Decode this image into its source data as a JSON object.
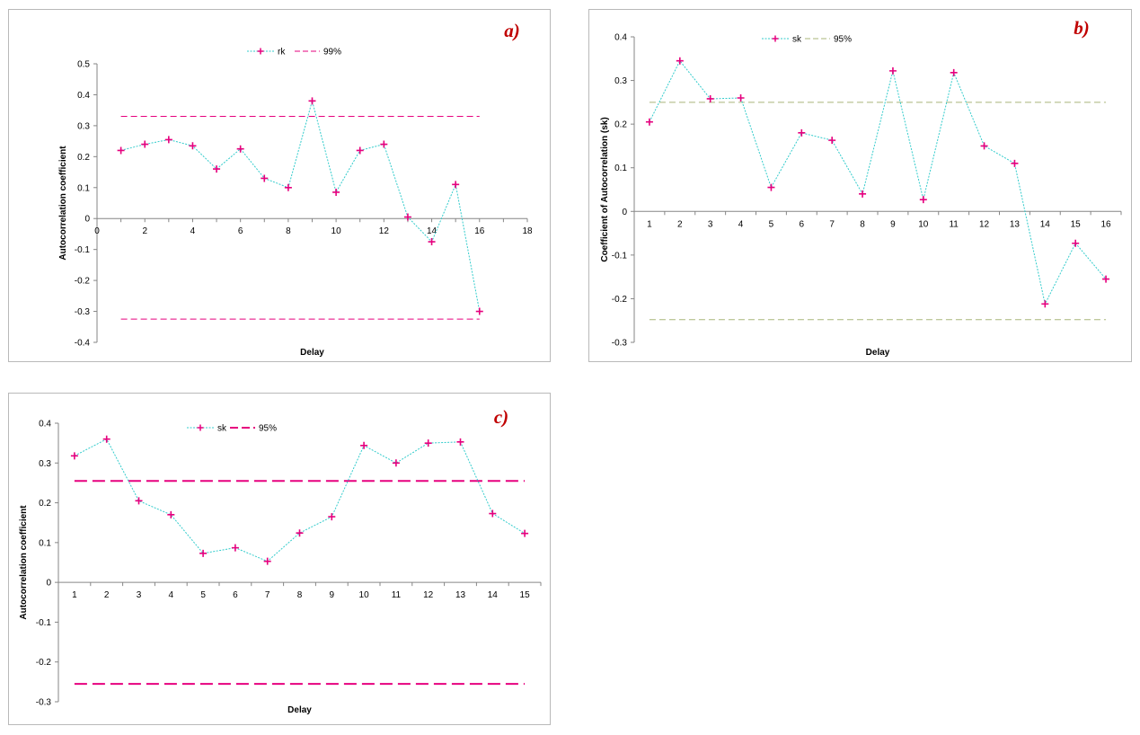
{
  "chart_data": [
    {
      "type": "line",
      "panel_label": "a)",
      "title": "",
      "xlabel": "Delay",
      "ylabel": "Autocorrelation coefficient",
      "xaxis": "numeric",
      "xlim": [
        0,
        18
      ],
      "xticks": [
        "0",
        "2",
        "4",
        "6",
        "8",
        "10",
        "12",
        "14",
        "16",
        "18"
      ],
      "ylim": [
        -0.4,
        0.5
      ],
      "yticks": [
        "-0.4",
        "-0.3",
        "-0.2",
        "-0.1",
        "0",
        "0.1",
        "0.2",
        "0.3",
        "0.4",
        "0.5"
      ],
      "series": [
        {
          "name": "rk",
          "role": "data",
          "color": "#33cccc",
          "marker_color": "#e6007e",
          "x": [
            1,
            2,
            3,
            4,
            5,
            6,
            7,
            8,
            9,
            10,
            11,
            12,
            13,
            14,
            15,
            16
          ],
          "values": [
            0.22,
            0.24,
            0.255,
            0.235,
            0.16,
            0.225,
            0.13,
            0.1,
            0.38,
            0.085,
            0.22,
            0.24,
            0.005,
            -0.075,
            0.11,
            -0.3
          ]
        }
      ],
      "bounds": {
        "name": "99%",
        "upper": 0.33,
        "lower": -0.325,
        "x_start": 1,
        "x_end": 16,
        "color": "#e6007e",
        "style": "thin-dash"
      },
      "legend": [
        "rk",
        "99%"
      ],
      "legend_position": "top"
    },
    {
      "type": "line",
      "panel_label": "b)",
      "title": "",
      "xlabel": "Delay",
      "ylabel": "Coefficient of Autocorrelation (sk)",
      "xaxis": "category",
      "categories": [
        "1",
        "2",
        "3",
        "4",
        "5",
        "6",
        "7",
        "8",
        "9",
        "10",
        "11",
        "12",
        "13",
        "14",
        "15",
        "16"
      ],
      "ylim": [
        -0.3,
        0.4
      ],
      "yticks": [
        "-0.3",
        "-0.2",
        "-0.1",
        "0",
        "0.1",
        "0.2",
        "0.3",
        "0.4"
      ],
      "series": [
        {
          "name": "sk",
          "role": "data",
          "color": "#33cccc",
          "marker_color": "#e6007e",
          "values": [
            0.205,
            0.345,
            0.258,
            0.26,
            0.055,
            0.18,
            0.163,
            0.04,
            0.322,
            0.027,
            0.318,
            0.15,
            0.11,
            -0.212,
            -0.073,
            -0.155
          ]
        }
      ],
      "bounds": {
        "name": "95%",
        "upper": 0.25,
        "lower": -0.248,
        "color": "#a9b57a",
        "style": "thin-dash"
      },
      "legend": [
        "sk",
        "95%"
      ],
      "legend_position": "top"
    },
    {
      "type": "line",
      "panel_label": "c)",
      "title": "",
      "xlabel": "Delay",
      "ylabel": "Autocorrelation coefficient",
      "xaxis": "category",
      "categories": [
        "1",
        "2",
        "3",
        "4",
        "5",
        "6",
        "7",
        "8",
        "9",
        "10",
        "11",
        "12",
        "13",
        "14",
        "15"
      ],
      "ylim": [
        -0.3,
        0.4
      ],
      "yticks": [
        "-0.3",
        "-0.2",
        "-0.1",
        "0",
        "0.1",
        "0.2",
        "0.3",
        "0.4"
      ],
      "series": [
        {
          "name": "sk",
          "role": "data",
          "color": "#33cccc",
          "marker_color": "#e6007e",
          "values": [
            0.318,
            0.36,
            0.205,
            0.17,
            0.073,
            0.087,
            0.053,
            0.124,
            0.165,
            0.344,
            0.3,
            0.35,
            0.353,
            0.173,
            0.123
          ]
        }
      ],
      "bounds": {
        "name": "95%",
        "upper": 0.255,
        "lower": -0.255,
        "color": "#e6007e",
        "style": "thick-dash"
      },
      "legend": [
        "sk",
        "95%"
      ],
      "legend_position": "top"
    }
  ]
}
